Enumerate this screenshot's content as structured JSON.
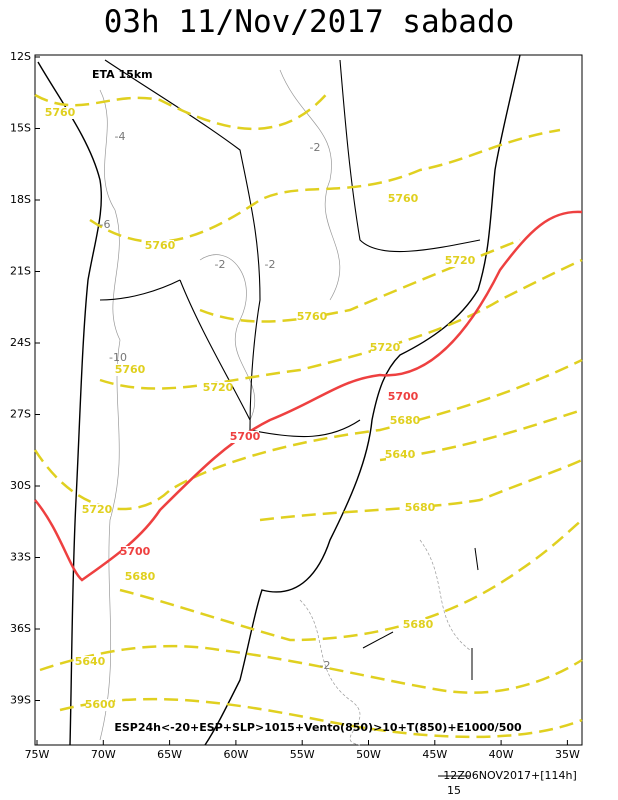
{
  "title": "03h 11/Nov/2017 sabado",
  "model": "ETA 15km",
  "lat_labels": [
    "12S",
    "15S",
    "18S",
    "21S",
    "24S",
    "27S",
    "30S",
    "33S",
    "36S",
    "39S"
  ],
  "lon_labels": [
    "75W",
    "70W",
    "65W",
    "60W",
    "55W",
    "50W",
    "45W",
    "40W",
    "35W"
  ],
  "yellow_labels": [
    "5760",
    "5760",
    "5760",
    "5720",
    "5760",
    "5720",
    "5760",
    "5720",
    "5680",
    "5640",
    "5720",
    "5680",
    "5680",
    "5680",
    "5640",
    "5600"
  ],
  "red_labels": [
    "5700",
    "5700",
    "5700"
  ],
  "gray_labels": [
    "-2",
    "-4",
    "-6",
    "-2",
    "-2",
    "-10",
    "-2"
  ],
  "caption": "ESP24h<-20+ESP+SLP>1015+Vento(850)>10+T(850)+E1000/500",
  "run_label": "12Z06NOV2017+[114h]",
  "scale_label": "15"
}
